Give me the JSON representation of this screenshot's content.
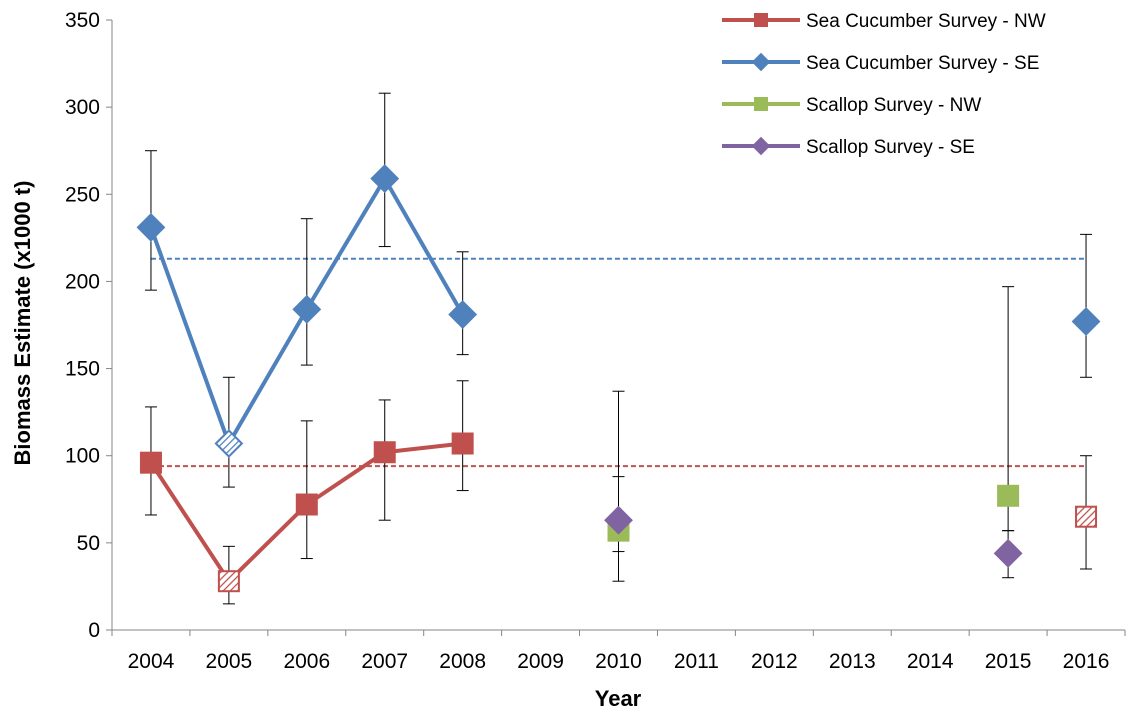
{
  "chart_data": {
    "type": "line",
    "xlabel": "Year",
    "ylabel": "Biomass Estimate (x1000 t)",
    "categories": [
      "2004",
      "2005",
      "2006",
      "2007",
      "2008",
      "2009",
      "2010",
      "2011",
      "2012",
      "2013",
      "2014",
      "2015",
      "2016"
    ],
    "ylim": [
      0,
      350
    ],
    "yticks": [
      0,
      50,
      100,
      150,
      200,
      250,
      300,
      350
    ],
    "grid": false,
    "legend_position": "top-right",
    "series": [
      {
        "name": "Sea Cucumber Survey - NW",
        "color": "#C0504D",
        "marker": "square",
        "points": [
          {
            "x": "2004",
            "y": 96,
            "low": 66,
            "high": 128,
            "connected": true,
            "hatched": false
          },
          {
            "x": "2005",
            "y": 28,
            "low": 15,
            "high": 48,
            "connected": true,
            "hatched": true
          },
          {
            "x": "2006",
            "y": 72,
            "low": 41,
            "high": 120,
            "connected": true,
            "hatched": false
          },
          {
            "x": "2007",
            "y": 102,
            "low": 63,
            "high": 132,
            "connected": true,
            "hatched": false
          },
          {
            "x": "2008",
            "y": 107,
            "low": 80,
            "high": 143,
            "connected": true,
            "hatched": false
          },
          {
            "x": "2016",
            "y": 65,
            "low": 35,
            "high": 100,
            "connected": false,
            "hatched": true
          }
        ],
        "reference_line": 94
      },
      {
        "name": "Sea Cucumber Survey - SE",
        "color": "#4F81BD",
        "marker": "diamond",
        "points": [
          {
            "x": "2004",
            "y": 231,
            "low": 195,
            "high": 275,
            "connected": true,
            "hatched": false
          },
          {
            "x": "2005",
            "y": 107,
            "low": 82,
            "high": 145,
            "connected": true,
            "hatched": true
          },
          {
            "x": "2006",
            "y": 184,
            "low": 152,
            "high": 236,
            "connected": true,
            "hatched": false
          },
          {
            "x": "2007",
            "y": 259,
            "low": 220,
            "high": 308,
            "connected": true,
            "hatched": false
          },
          {
            "x": "2008",
            "y": 181,
            "low": 158,
            "high": 217,
            "connected": true,
            "hatched": false
          },
          {
            "x": "2016",
            "y": 177,
            "low": 145,
            "high": 227,
            "connected": false,
            "hatched": false
          }
        ],
        "reference_line": 213
      },
      {
        "name": "Scallop Survey - NW",
        "color": "#9BBB59",
        "marker": "square",
        "points": [
          {
            "x": "2010",
            "y": 57,
            "low": 45,
            "high": 88,
            "connected": false,
            "hatched": false
          },
          {
            "x": "2015",
            "y": 77,
            "low": 57,
            "high": 197,
            "connected": false,
            "hatched": false
          }
        ]
      },
      {
        "name": "Scallop Survey - SE",
        "color": "#8064A2",
        "marker": "diamond",
        "points": [
          {
            "x": "2010",
            "y": 63,
            "low": 28,
            "high": 137,
            "connected": false,
            "hatched": false
          },
          {
            "x": "2015",
            "y": 44,
            "low": 30,
            "high": 57,
            "connected": false,
            "hatched": false
          }
        ]
      }
    ]
  }
}
